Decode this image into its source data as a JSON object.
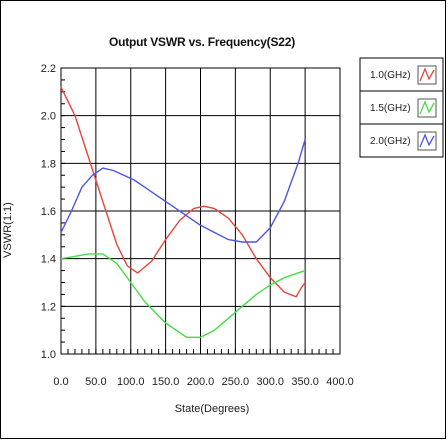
{
  "chart_data": {
    "type": "line",
    "title": "Output VSWR vs. Frequency(S22)",
    "xlabel": "State(Degrees)",
    "ylabel": "VSWR(1:1)",
    "xlim": [
      0,
      400
    ],
    "ylim": [
      1.0,
      2.2
    ],
    "x_ticks": [
      "0.0",
      "50.0",
      "100.0",
      "150.0",
      "200.0",
      "250.0",
      "300.0",
      "350.0",
      "400.0"
    ],
    "y_ticks": [
      "1.0",
      "1.2",
      "1.4",
      "1.6",
      "1.8",
      "2.0",
      "2.2"
    ],
    "grid": true,
    "legend_position": "right",
    "series": [
      {
        "name": "1.0(GHz)",
        "color": "#e8463a",
        "x": [
          0,
          20,
          40,
          60,
          80,
          95,
          110,
          130,
          150,
          170,
          190,
          205,
          220,
          240,
          260,
          280,
          300,
          320,
          337,
          345,
          350
        ],
        "y": [
          2.12,
          2.0,
          1.82,
          1.64,
          1.46,
          1.37,
          1.34,
          1.39,
          1.48,
          1.56,
          1.61,
          1.62,
          1.61,
          1.57,
          1.5,
          1.4,
          1.32,
          1.26,
          1.24,
          1.28,
          1.3
        ]
      },
      {
        "name": "1.5(GHz)",
        "color": "#46dc46",
        "x": [
          0,
          20,
          40,
          60,
          80,
          100,
          120,
          150,
          180,
          200,
          220,
          240,
          260,
          280,
          300,
          320,
          350
        ],
        "y": [
          1.4,
          1.41,
          1.42,
          1.42,
          1.38,
          1.3,
          1.22,
          1.13,
          1.07,
          1.07,
          1.1,
          1.15,
          1.2,
          1.25,
          1.29,
          1.32,
          1.35
        ]
      },
      {
        "name": "2.0(GHz)",
        "color": "#4b56e6",
        "x": [
          0,
          15,
          30,
          45,
          60,
          75,
          90,
          105,
          120,
          140,
          160,
          180,
          200,
          220,
          240,
          260,
          280,
          300,
          320,
          340,
          350
        ],
        "y": [
          1.51,
          1.6,
          1.7,
          1.75,
          1.78,
          1.77,
          1.75,
          1.73,
          1.7,
          1.66,
          1.62,
          1.58,
          1.54,
          1.51,
          1.48,
          1.47,
          1.47,
          1.53,
          1.64,
          1.8,
          1.9
        ]
      }
    ]
  }
}
